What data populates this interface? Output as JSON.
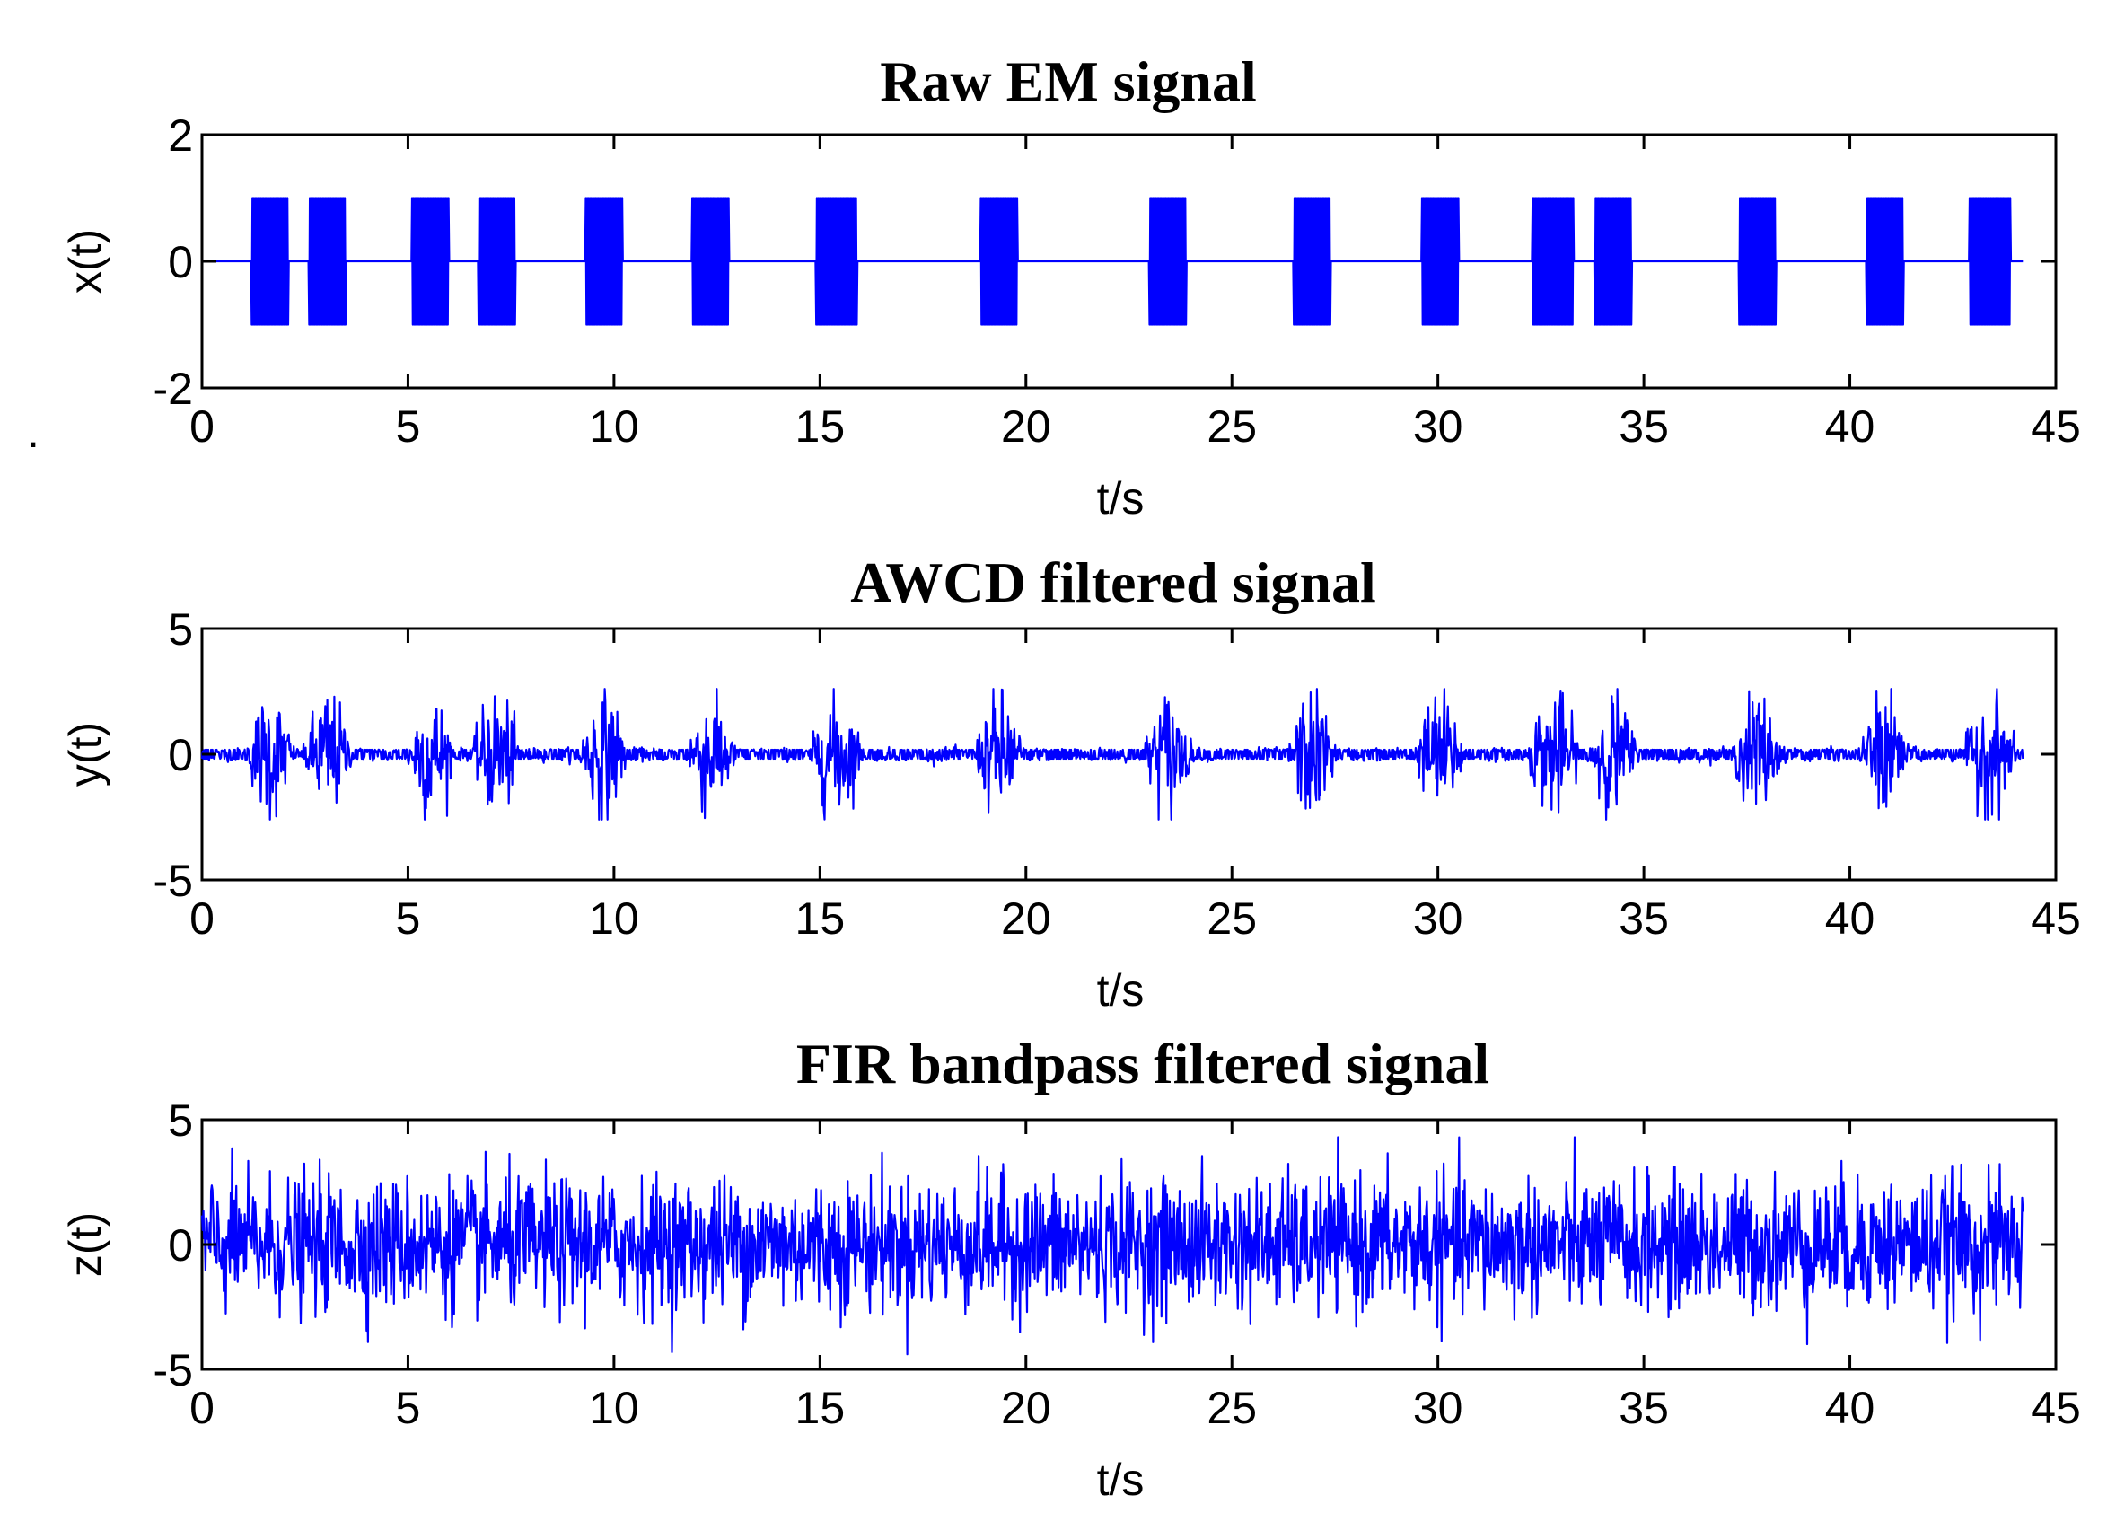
{
  "chart_data": [
    {
      "type": "line",
      "title": "Raw EM signal",
      "xlabel": "t/s",
      "ylabel": "x(t)",
      "xlim": [
        0,
        45
      ],
      "ylim": [
        -2,
        2
      ],
      "x_ticks": [
        "0",
        "5",
        "10",
        "15",
        "20",
        "25",
        "30",
        "35",
        "40",
        "45"
      ],
      "y_ticks": [
        "-2",
        "0",
        "2"
      ],
      "series": [
        {
          "color": "#0000ff",
          "signal_span": [
            0,
            44.2
          ],
          "amplitude": 1,
          "baseline": 0,
          "bursts": [
            [
              1.2,
              2.1
            ],
            [
              2.6,
              3.5
            ],
            [
              5.1,
              6.0
            ],
            [
              6.7,
              7.6
            ],
            [
              9.3,
              10.2
            ],
            [
              11.9,
              12.8
            ],
            [
              14.9,
              15.9
            ],
            [
              18.9,
              19.8
            ],
            [
              23.0,
              23.9
            ],
            [
              26.5,
              27.4
            ],
            [
              29.6,
              30.5
            ],
            [
              32.3,
              33.3
            ],
            [
              33.8,
              34.7
            ],
            [
              37.3,
              38.2
            ],
            [
              40.4,
              41.3
            ],
            [
              42.9,
              43.9
            ]
          ]
        }
      ]
    },
    {
      "type": "line",
      "title": "AWCD filtered signal",
      "xlabel": "t/s",
      "ylabel": "y(t)",
      "xlim": [
        0,
        45
      ],
      "ylim": [
        -5,
        5
      ],
      "x_ticks": [
        "0",
        "5",
        "10",
        "15",
        "20",
        "25",
        "30",
        "35",
        "40",
        "45"
      ],
      "y_ticks": [
        "-5",
        "0",
        "5"
      ],
      "series": [
        {
          "color": "#0000ff",
          "signal_span": [
            0,
            44.2
          ],
          "burst_peak": 2.6,
          "noise_floor": 0.3,
          "bursts": [
            [
              1.2,
              2.1
            ],
            [
              2.6,
              3.5
            ],
            [
              5.1,
              6.0
            ],
            [
              6.7,
              7.6
            ],
            [
              9.3,
              10.2
            ],
            [
              11.9,
              12.8
            ],
            [
              14.9,
              15.9
            ],
            [
              18.9,
              19.8
            ],
            [
              23.0,
              23.9
            ],
            [
              26.5,
              27.4
            ],
            [
              29.6,
              30.5
            ],
            [
              32.3,
              33.3
            ],
            [
              33.8,
              34.7
            ],
            [
              37.3,
              38.2
            ],
            [
              40.4,
              41.3
            ],
            [
              42.9,
              43.9
            ]
          ]
        }
      ]
    },
    {
      "type": "line",
      "title": "FIR bandpass filtered signal",
      "xlabel": "t/s",
      "ylabel": "z(t)",
      "xlim": [
        0,
        45
      ],
      "ylim": [
        -5,
        5
      ],
      "x_ticks": [
        "0",
        "5",
        "10",
        "15",
        "20",
        "25",
        "30",
        "35",
        "40",
        "45"
      ],
      "y_ticks": [
        "-5",
        "0",
        "5"
      ],
      "series": [
        {
          "color": "#0000ff",
          "signal_span": [
            0,
            44.2
          ],
          "noise_std": 1.3,
          "peak_range": [
            -4.4,
            4.3
          ]
        }
      ]
    }
  ]
}
